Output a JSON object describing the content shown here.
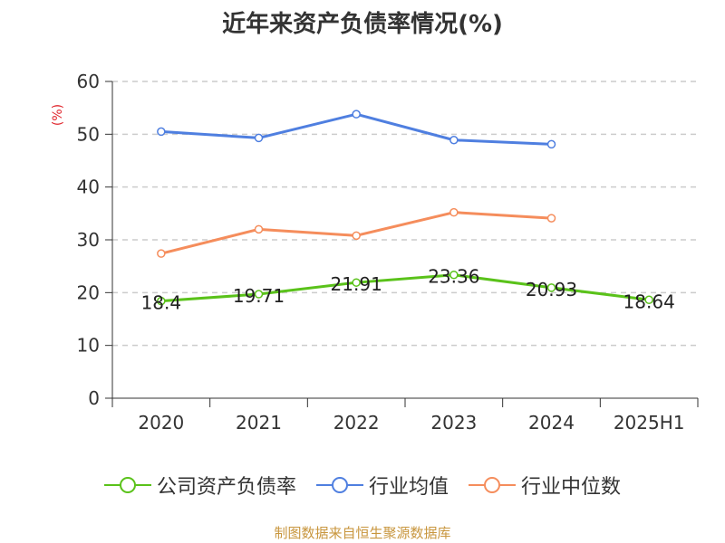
{
  "chart_data": {
    "type": "line",
    "title": "近年来资产负债率情况(%)",
    "ylabel": "(%)",
    "categories": [
      "2020",
      "2021",
      "2022",
      "2023",
      "2024",
      "2025H1"
    ],
    "ylim": [
      0,
      60
    ],
    "yticks": [
      0,
      10,
      20,
      30,
      40,
      50,
      60
    ],
    "grid": true,
    "legend_position": "bottom",
    "series": [
      {
        "name": "公司资产负债率",
        "color": "#5ac21a",
        "values": [
          18.4,
          19.71,
          21.91,
          23.36,
          20.93,
          18.64
        ],
        "labels": [
          "18.4",
          "19.71",
          "21.91",
          "23.36",
          "20.93",
          "18.64"
        ]
      },
      {
        "name": "行业均值",
        "color": "#4f7fe0",
        "values": [
          50.5,
          49.3,
          53.8,
          48.9,
          48.1,
          null
        ]
      },
      {
        "name": "行业中位数",
        "color": "#f58d5c",
        "values": [
          27.4,
          32.0,
          30.8,
          35.2,
          34.1,
          null
        ]
      }
    ]
  },
  "source": "制图数据来自恒生聚源数据库"
}
